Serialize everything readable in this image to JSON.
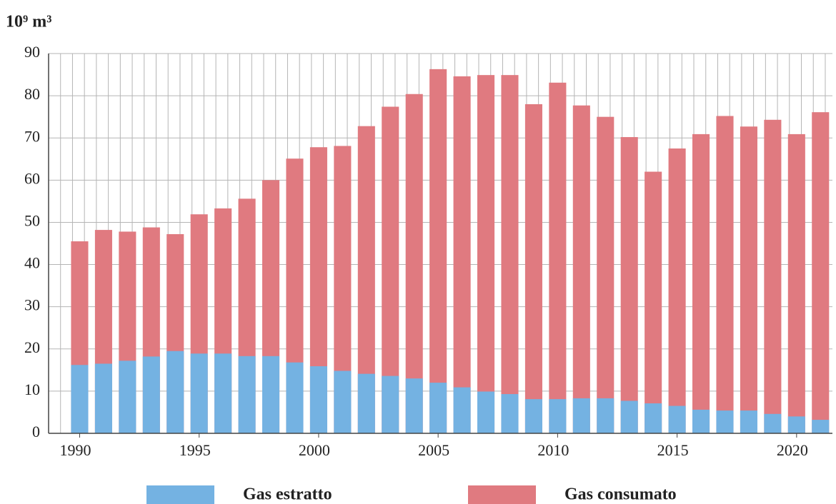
{
  "chart_data": {
    "type": "bar",
    "y_label": "10⁹ m³",
    "x": [
      1990,
      1991,
      1992,
      1993,
      1994,
      1995,
      1996,
      1997,
      1998,
      1999,
      2000,
      2001,
      2002,
      2003,
      2004,
      2005,
      2006,
      2007,
      2008,
      2009,
      2010,
      2011,
      2012,
      2013,
      2014,
      2015,
      2016,
      2017,
      2018,
      2019,
      2020,
      2021
    ],
    "xlim": [
      1988.7,
      2021.5
    ],
    "xticks": [
      1990,
      1995,
      2000,
      2005,
      2010,
      2015,
      2020
    ],
    "ylim": [
      0,
      90
    ],
    "yticks": [
      0,
      10,
      20,
      30,
      40,
      50,
      60,
      70,
      80,
      90
    ],
    "grid": true,
    "legend": "bottom",
    "series": [
      {
        "name": "Gas estratto",
        "color": "#74b2e2",
        "values": [
          16.2,
          16.5,
          17.2,
          18.2,
          19.5,
          18.9,
          18.9,
          18.3,
          18.3,
          16.8,
          15.9,
          14.8,
          14.1,
          13.6,
          13.0,
          12.0,
          10.9,
          9.9,
          9.3,
          8.1,
          8.1,
          8.3,
          8.3,
          7.7,
          7.1,
          6.5,
          5.6,
          5.4,
          5.4,
          4.6,
          4.0,
          3.2
        ]
      },
      {
        "name": "Gas consumato",
        "color": "#e07a80",
        "values": [
          45.5,
          48.2,
          47.8,
          48.8,
          47.2,
          51.9,
          53.3,
          55.6,
          60.0,
          65.1,
          67.8,
          68.1,
          72.8,
          77.4,
          80.4,
          86.3,
          84.6,
          84.9,
          84.9,
          78.0,
          83.1,
          77.7,
          75.0,
          70.2,
          62.0,
          67.5,
          70.9,
          75.2,
          72.7,
          74.3,
          70.9,
          76.1
        ]
      }
    ]
  }
}
